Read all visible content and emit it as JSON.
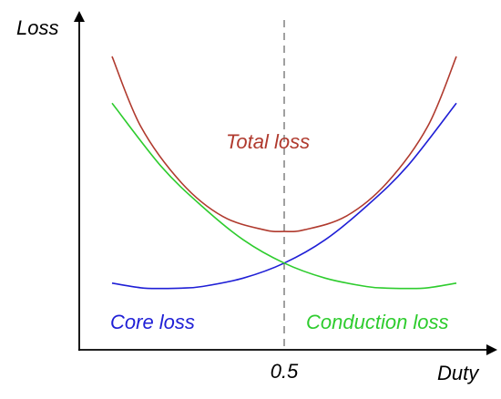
{
  "chart_data": {
    "type": "line",
    "title": "",
    "xlabel": "Duty",
    "ylabel": "Loss",
    "x_ticks": [
      {
        "value": 0.5,
        "label": "0.5"
      }
    ],
    "xlim": [
      0,
      1
    ],
    "ylim": [
      0,
      1
    ],
    "grid": false,
    "reference_line": {
      "orientation": "vertical",
      "x": 0.5,
      "style": "dashed",
      "color": "#808080"
    },
    "series": [
      {
        "name": "Total loss",
        "color": "#b03a2e",
        "x": [
          0.08,
          0.15,
          0.25,
          0.35,
          0.45,
          0.5,
          0.55,
          0.65,
          0.75,
          0.85,
          0.92
        ],
        "y": [
          0.88,
          0.67,
          0.5,
          0.4,
          0.36,
          0.355,
          0.36,
          0.4,
          0.5,
          0.67,
          0.88
        ]
      },
      {
        "name": "Core loss",
        "color": "#1f1fd6",
        "x": [
          0.08,
          0.15,
          0.2,
          0.25,
          0.3,
          0.4,
          0.5,
          0.6,
          0.7,
          0.8,
          0.92
        ],
        "y": [
          0.2,
          0.186,
          0.184,
          0.185,
          0.19,
          0.215,
          0.26,
          0.33,
          0.43,
          0.55,
          0.74
        ]
      },
      {
        "name": "Conduction loss",
        "color": "#2ecc2e",
        "x": [
          0.08,
          0.2,
          0.3,
          0.4,
          0.5,
          0.6,
          0.7,
          0.75,
          0.8,
          0.85,
          0.92
        ],
        "y": [
          0.74,
          0.55,
          0.43,
          0.33,
          0.26,
          0.215,
          0.19,
          0.185,
          0.184,
          0.186,
          0.2
        ]
      }
    ]
  }
}
